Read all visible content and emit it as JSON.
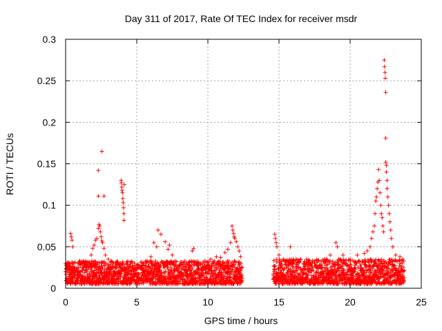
{
  "chart_data": {
    "type": "scatter",
    "title": "Day 311 of 2017, Rate Of TEC Index for receiver msdr",
    "xlabel": "GPS time / hours",
    "ylabel": "ROTI / TECUs",
    "xlim": [
      0,
      25
    ],
    "ylim": [
      0,
      0.3
    ],
    "xticks": [
      0,
      5,
      10,
      15,
      20,
      25
    ],
    "yticks": [
      0,
      0.05,
      0.1,
      0.15,
      0.2,
      0.25,
      0.3
    ],
    "ytick_labels": [
      "0",
      "0.05",
      "0.1",
      "0.15",
      "0.2",
      "0.25",
      "0.3"
    ],
    "grid": true,
    "marker": "+",
    "marker_color": "#ff0000",
    "series": [
      {
        "name": "ROTI",
        "data_gap_hours": [
          12.5,
          14.5
        ],
        "baseline_segments": [
          {
            "x_range": [
              0.0,
              12.4
            ],
            "y_range": [
              0.005,
              0.033
            ]
          },
          {
            "x_range": [
              14.6,
              23.8
            ],
            "y_range": [
              0.005,
              0.035
            ]
          }
        ],
        "points": [
          [
            0.1,
            0.031
          ],
          [
            0.2,
            0.026
          ],
          [
            0.3,
            0.029
          ],
          [
            0.35,
            0.066
          ],
          [
            0.4,
            0.062
          ],
          [
            0.45,
            0.058
          ],
          [
            0.5,
            0.05
          ],
          [
            1.0,
            0.03
          ],
          [
            1.5,
            0.031
          ],
          [
            1.8,
            0.04
          ],
          [
            1.9,
            0.048
          ],
          [
            2.0,
            0.052
          ],
          [
            2.1,
            0.058
          ],
          [
            2.2,
            0.06
          ],
          [
            2.3,
            0.072
          ],
          [
            2.35,
            0.077
          ],
          [
            2.4,
            0.075
          ],
          [
            2.45,
            0.068
          ],
          [
            2.5,
            0.062
          ],
          [
            2.55,
            0.057
          ],
          [
            2.6,
            0.055
          ],
          [
            2.7,
            0.048
          ],
          [
            2.8,
            0.04
          ],
          [
            2.3,
            0.142
          ],
          [
            2.3,
            0.111
          ],
          [
            2.55,
            0.165
          ],
          [
            2.7,
            0.111
          ],
          [
            3.0,
            0.035
          ],
          [
            3.5,
            0.025
          ],
          [
            3.85,
            0.03
          ],
          [
            3.9,
            0.13
          ],
          [
            3.92,
            0.127
          ],
          [
            3.95,
            0.122
          ],
          [
            3.97,
            0.118
          ],
          [
            4.0,
            0.115
          ],
          [
            4.02,
            0.108
          ],
          [
            4.05,
            0.103
          ],
          [
            4.07,
            0.097
          ],
          [
            4.1,
            0.09
          ],
          [
            4.1,
            0.082
          ],
          [
            4.12,
            0.125
          ],
          [
            4.5,
            0.026
          ],
          [
            5.0,
            0.025
          ],
          [
            5.5,
            0.03
          ],
          [
            6.0,
            0.038
          ],
          [
            6.2,
            0.055
          ],
          [
            6.4,
            0.05
          ],
          [
            6.5,
            0.07
          ],
          [
            6.7,
            0.065
          ],
          [
            7.0,
            0.056
          ],
          [
            7.2,
            0.047
          ],
          [
            7.3,
            0.052
          ],
          [
            7.5,
            0.04
          ],
          [
            7.8,
            0.032
          ],
          [
            8.0,
            0.028
          ],
          [
            8.5,
            0.02
          ],
          [
            8.9,
            0.045
          ],
          [
            9.0,
            0.048
          ],
          [
            9.3,
            0.03
          ],
          [
            9.8,
            0.033
          ],
          [
            10.2,
            0.035
          ],
          [
            10.6,
            0.038
          ],
          [
            10.9,
            0.037
          ],
          [
            11.2,
            0.043
          ],
          [
            11.4,
            0.047
          ],
          [
            11.6,
            0.055
          ],
          [
            11.7,
            0.075
          ],
          [
            11.75,
            0.07
          ],
          [
            11.8,
            0.066
          ],
          [
            11.85,
            0.062
          ],
          [
            11.9,
            0.06
          ],
          [
            12.0,
            0.056
          ],
          [
            12.1,
            0.05
          ],
          [
            12.2,
            0.045
          ],
          [
            12.3,
            0.038
          ],
          [
            14.7,
            0.065
          ],
          [
            14.75,
            0.06
          ],
          [
            14.8,
            0.055
          ],
          [
            14.85,
            0.05
          ],
          [
            15.0,
            0.04
          ],
          [
            15.3,
            0.035
          ],
          [
            15.8,
            0.05
          ],
          [
            16.2,
            0.035
          ],
          [
            16.8,
            0.032
          ],
          [
            17.5,
            0.03
          ],
          [
            18.2,
            0.035
          ],
          [
            18.6,
            0.04
          ],
          [
            19.0,
            0.055
          ],
          [
            19.1,
            0.05
          ],
          [
            19.5,
            0.04
          ],
          [
            20.0,
            0.035
          ],
          [
            20.5,
            0.04
          ],
          [
            21.0,
            0.042
          ],
          [
            21.2,
            0.045
          ],
          [
            21.4,
            0.05
          ],
          [
            21.5,
            0.06
          ],
          [
            21.6,
            0.068
          ],
          [
            21.7,
            0.075
          ],
          [
            21.75,
            0.09
          ],
          [
            21.8,
            0.105
          ],
          [
            21.85,
            0.11
          ],
          [
            21.9,
            0.12
          ],
          [
            21.95,
            0.128
          ],
          [
            22.0,
            0.143
          ],
          [
            22.05,
            0.13
          ],
          [
            22.1,
            0.115
          ],
          [
            22.15,
            0.1
          ],
          [
            22.2,
            0.09
          ],
          [
            22.25,
            0.085
          ],
          [
            22.3,
            0.075
          ],
          [
            22.35,
            0.068
          ],
          [
            22.4,
            0.275
          ],
          [
            22.42,
            0.267
          ],
          [
            22.45,
            0.26
          ],
          [
            22.47,
            0.253
          ],
          [
            22.5,
            0.236
          ],
          [
            22.5,
            0.181
          ],
          [
            22.5,
            0.152
          ],
          [
            22.55,
            0.148
          ],
          [
            22.55,
            0.14
          ],
          [
            22.6,
            0.13
          ],
          [
            22.6,
            0.12
          ],
          [
            22.65,
            0.11
          ],
          [
            22.7,
            0.1
          ],
          [
            22.75,
            0.09
          ],
          [
            22.8,
            0.08
          ],
          [
            22.85,
            0.07
          ],
          [
            22.9,
            0.06
          ],
          [
            23.0,
            0.05
          ],
          [
            23.2,
            0.04
          ],
          [
            23.5,
            0.038
          ],
          [
            23.7,
            0.035
          ]
        ]
      }
    ]
  }
}
